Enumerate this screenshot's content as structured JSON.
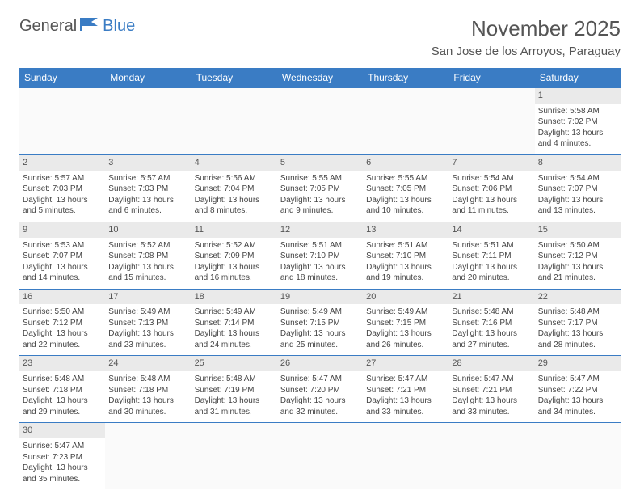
{
  "brand": {
    "general": "General",
    "blue": "Blue"
  },
  "title": "November 2025",
  "location": "San Jose de los Arroyos, Paraguay",
  "colors": {
    "header_bg": "#3a7cc4",
    "header_text": "#ffffff",
    "border": "#3a7cc4",
    "daynum_bg": "#eaeaea"
  },
  "day_headers": [
    "Sunday",
    "Monday",
    "Tuesday",
    "Wednesday",
    "Thursday",
    "Friday",
    "Saturday"
  ],
  "weeks": [
    [
      null,
      null,
      null,
      null,
      null,
      null,
      {
        "day": "1",
        "sunrise": "Sunrise: 5:58 AM",
        "sunset": "Sunset: 7:02 PM",
        "daylight1": "Daylight: 13 hours",
        "daylight2": "and 4 minutes."
      }
    ],
    [
      {
        "day": "2",
        "sunrise": "Sunrise: 5:57 AM",
        "sunset": "Sunset: 7:03 PM",
        "daylight1": "Daylight: 13 hours",
        "daylight2": "and 5 minutes."
      },
      {
        "day": "3",
        "sunrise": "Sunrise: 5:57 AM",
        "sunset": "Sunset: 7:03 PM",
        "daylight1": "Daylight: 13 hours",
        "daylight2": "and 6 minutes."
      },
      {
        "day": "4",
        "sunrise": "Sunrise: 5:56 AM",
        "sunset": "Sunset: 7:04 PM",
        "daylight1": "Daylight: 13 hours",
        "daylight2": "and 8 minutes."
      },
      {
        "day": "5",
        "sunrise": "Sunrise: 5:55 AM",
        "sunset": "Sunset: 7:05 PM",
        "daylight1": "Daylight: 13 hours",
        "daylight2": "and 9 minutes."
      },
      {
        "day": "6",
        "sunrise": "Sunrise: 5:55 AM",
        "sunset": "Sunset: 7:05 PM",
        "daylight1": "Daylight: 13 hours",
        "daylight2": "and 10 minutes."
      },
      {
        "day": "7",
        "sunrise": "Sunrise: 5:54 AM",
        "sunset": "Sunset: 7:06 PM",
        "daylight1": "Daylight: 13 hours",
        "daylight2": "and 11 minutes."
      },
      {
        "day": "8",
        "sunrise": "Sunrise: 5:54 AM",
        "sunset": "Sunset: 7:07 PM",
        "daylight1": "Daylight: 13 hours",
        "daylight2": "and 13 minutes."
      }
    ],
    [
      {
        "day": "9",
        "sunrise": "Sunrise: 5:53 AM",
        "sunset": "Sunset: 7:07 PM",
        "daylight1": "Daylight: 13 hours",
        "daylight2": "and 14 minutes."
      },
      {
        "day": "10",
        "sunrise": "Sunrise: 5:52 AM",
        "sunset": "Sunset: 7:08 PM",
        "daylight1": "Daylight: 13 hours",
        "daylight2": "and 15 minutes."
      },
      {
        "day": "11",
        "sunrise": "Sunrise: 5:52 AM",
        "sunset": "Sunset: 7:09 PM",
        "daylight1": "Daylight: 13 hours",
        "daylight2": "and 16 minutes."
      },
      {
        "day": "12",
        "sunrise": "Sunrise: 5:51 AM",
        "sunset": "Sunset: 7:10 PM",
        "daylight1": "Daylight: 13 hours",
        "daylight2": "and 18 minutes."
      },
      {
        "day": "13",
        "sunrise": "Sunrise: 5:51 AM",
        "sunset": "Sunset: 7:10 PM",
        "daylight1": "Daylight: 13 hours",
        "daylight2": "and 19 minutes."
      },
      {
        "day": "14",
        "sunrise": "Sunrise: 5:51 AM",
        "sunset": "Sunset: 7:11 PM",
        "daylight1": "Daylight: 13 hours",
        "daylight2": "and 20 minutes."
      },
      {
        "day": "15",
        "sunrise": "Sunrise: 5:50 AM",
        "sunset": "Sunset: 7:12 PM",
        "daylight1": "Daylight: 13 hours",
        "daylight2": "and 21 minutes."
      }
    ],
    [
      {
        "day": "16",
        "sunrise": "Sunrise: 5:50 AM",
        "sunset": "Sunset: 7:12 PM",
        "daylight1": "Daylight: 13 hours",
        "daylight2": "and 22 minutes."
      },
      {
        "day": "17",
        "sunrise": "Sunrise: 5:49 AM",
        "sunset": "Sunset: 7:13 PM",
        "daylight1": "Daylight: 13 hours",
        "daylight2": "and 23 minutes."
      },
      {
        "day": "18",
        "sunrise": "Sunrise: 5:49 AM",
        "sunset": "Sunset: 7:14 PM",
        "daylight1": "Daylight: 13 hours",
        "daylight2": "and 24 minutes."
      },
      {
        "day": "19",
        "sunrise": "Sunrise: 5:49 AM",
        "sunset": "Sunset: 7:15 PM",
        "daylight1": "Daylight: 13 hours",
        "daylight2": "and 25 minutes."
      },
      {
        "day": "20",
        "sunrise": "Sunrise: 5:49 AM",
        "sunset": "Sunset: 7:15 PM",
        "daylight1": "Daylight: 13 hours",
        "daylight2": "and 26 minutes."
      },
      {
        "day": "21",
        "sunrise": "Sunrise: 5:48 AM",
        "sunset": "Sunset: 7:16 PM",
        "daylight1": "Daylight: 13 hours",
        "daylight2": "and 27 minutes."
      },
      {
        "day": "22",
        "sunrise": "Sunrise: 5:48 AM",
        "sunset": "Sunset: 7:17 PM",
        "daylight1": "Daylight: 13 hours",
        "daylight2": "and 28 minutes."
      }
    ],
    [
      {
        "day": "23",
        "sunrise": "Sunrise: 5:48 AM",
        "sunset": "Sunset: 7:18 PM",
        "daylight1": "Daylight: 13 hours",
        "daylight2": "and 29 minutes."
      },
      {
        "day": "24",
        "sunrise": "Sunrise: 5:48 AM",
        "sunset": "Sunset: 7:18 PM",
        "daylight1": "Daylight: 13 hours",
        "daylight2": "and 30 minutes."
      },
      {
        "day": "25",
        "sunrise": "Sunrise: 5:48 AM",
        "sunset": "Sunset: 7:19 PM",
        "daylight1": "Daylight: 13 hours",
        "daylight2": "and 31 minutes."
      },
      {
        "day": "26",
        "sunrise": "Sunrise: 5:47 AM",
        "sunset": "Sunset: 7:20 PM",
        "daylight1": "Daylight: 13 hours",
        "daylight2": "and 32 minutes."
      },
      {
        "day": "27",
        "sunrise": "Sunrise: 5:47 AM",
        "sunset": "Sunset: 7:21 PM",
        "daylight1": "Daylight: 13 hours",
        "daylight2": "and 33 minutes."
      },
      {
        "day": "28",
        "sunrise": "Sunrise: 5:47 AM",
        "sunset": "Sunset: 7:21 PM",
        "daylight1": "Daylight: 13 hours",
        "daylight2": "and 33 minutes."
      },
      {
        "day": "29",
        "sunrise": "Sunrise: 5:47 AM",
        "sunset": "Sunset: 7:22 PM",
        "daylight1": "Daylight: 13 hours",
        "daylight2": "and 34 minutes."
      }
    ],
    [
      {
        "day": "30",
        "sunrise": "Sunrise: 5:47 AM",
        "sunset": "Sunset: 7:23 PM",
        "daylight1": "Daylight: 13 hours",
        "daylight2": "and 35 minutes."
      },
      null,
      null,
      null,
      null,
      null,
      null
    ]
  ]
}
